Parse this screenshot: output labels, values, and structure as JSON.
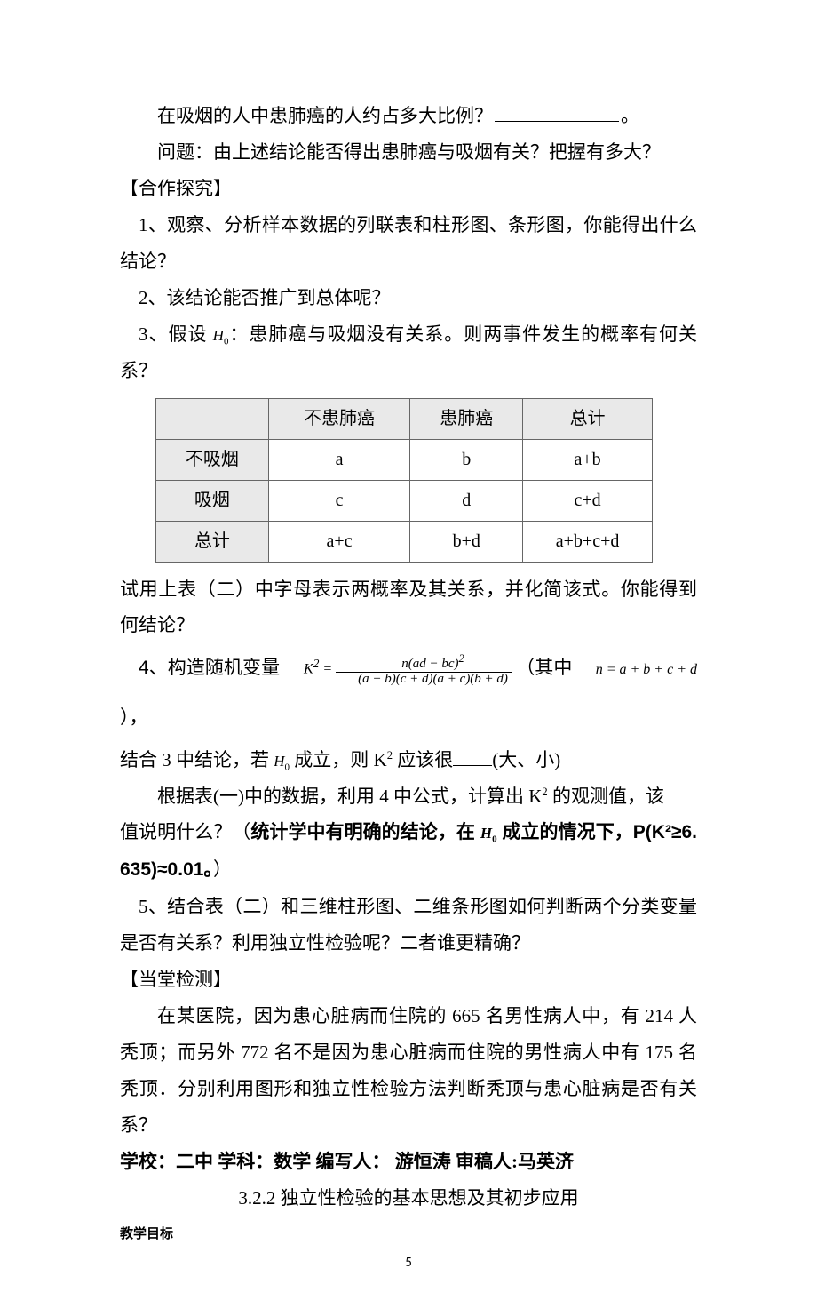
{
  "p1_a": "在吸烟的人中患肺癌的人约占多大比例？",
  "p1_b": "。",
  "p2": "问题：由上述结论能否得出患肺癌与吸烟有关？把握有多大？",
  "sec_coop": "【合作探究】",
  "q1": "1、观察、分析样本数据的列联表和柱形图、条形图，你能得出什么结论？",
  "q2": "2、该结论能否推广到总体呢？",
  "q3": "3、假设 ：患肺癌与吸烟没有关系。则两事件发生的概率有何关系？",
  "H0a": "H",
  "H0b": "0",
  "table": {
    "headers": [
      "",
      "不患肺癌",
      "患肺癌",
      "总计"
    ],
    "rows": [
      [
        "不吸烟",
        "a",
        "b",
        "a+b"
      ],
      [
        "吸烟",
        "c",
        "d",
        "c+d"
      ],
      [
        "总计",
        "a+c",
        "b+d",
        "a+b+c+d"
      ]
    ]
  },
  "tnote": "试用上表（二）中字母表示两概率及其关系，并化简该式。你能得到何结论？",
  "q4_a": "4、构造随机变量 ",
  "q4_k2eq": "K",
  "q4_k2exp": "2",
  "q4_eq": " = ",
  "frac_num_a": "n(ad − bc)",
  "frac_num_exp": "2",
  "frac_den": "(a + b)(c + d)(a + c)(b + d)",
  "q4_b": " （其中 ",
  "q4_c": "n = a + b + c + d",
  "q4_d": "），",
  "q4_line2_a": "结合 3 中结论，若 ",
  "q4_line2_b": " 成立，则 K",
  "q4_line2_c": " 应该很",
  "q4_line2_d": "(大、小)",
  "q4_line3": "根据表(一)中的数据，利用 4 中公式，计算出 K",
  "q4_line3b": " 的观测值，该",
  "q4_line4a": "值说明什么？（",
  "q4_line4b": "统计学中有明确的结论，在 ",
  "q4_line4c": " 成立的情况下，P(K²≥6.635)≈0.01。",
  "q4_line4d": "）",
  "q5": "5、结合表（二）和三维柱形图、二维条形图如何判断两个分类变量是否有关系？利用独立性检验呢？二者谁更精确？",
  "sec_test": "【当堂检测】",
  "test_body": "在某医院，因为患心脏病而住院的 665 名男性病人中，有 214 人秃顶；而另外 772 名不是因为患心脏病而住院的男性病人中有 175 名秃顶．分别利用图形和独立性检验方法判断秃顶与患心脏病是否有关系？",
  "byline": "学校：二中  学科：数学  编写人：  游恒涛    审稿人:马英济",
  "chapter": "3.2.2 独立性检验的基本思想及其初步应用",
  "goal": "教学目标",
  "page_number": "5"
}
